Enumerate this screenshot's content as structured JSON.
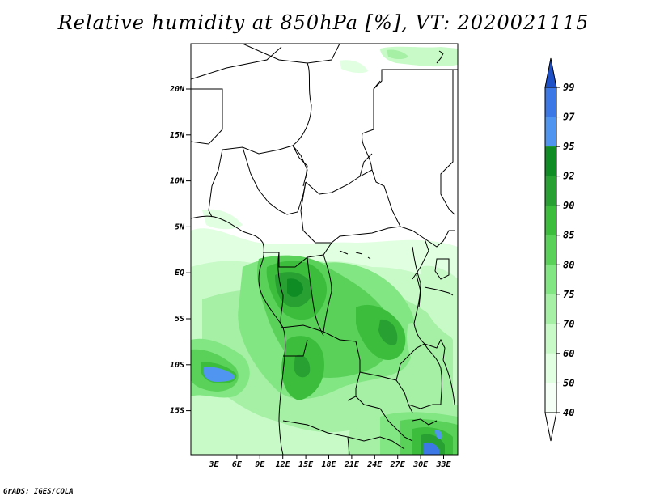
{
  "title": "Relative humidity at 850hPa [%], VT: 2020021115",
  "credit": "GrADS: IGES/COLA",
  "map": {
    "lat_labels": [
      "20N",
      "15N",
      "10N",
      "5N",
      "EQ",
      "5S",
      "10S",
      "15S"
    ],
    "lon_labels": [
      "3E",
      "6E",
      "9E",
      "12E",
      "15E",
      "18E",
      "21E",
      "24E",
      "27E",
      "30E",
      "33E"
    ]
  },
  "colorbar": {
    "levels": [
      "99",
      "97",
      "95",
      "92",
      "90",
      "85",
      "80",
      "75",
      "70",
      "60",
      "50",
      "40"
    ],
    "colors": [
      "#1e50c8",
      "#3c78e6",
      "#5096f0",
      "#0f8c23",
      "#28a032",
      "#3cbe3c",
      "#5ad25a",
      "#82e682",
      "#a5f0a5",
      "#c8fac8",
      "#e1ffe1",
      "#f5fff5",
      "#ffffff"
    ]
  }
}
